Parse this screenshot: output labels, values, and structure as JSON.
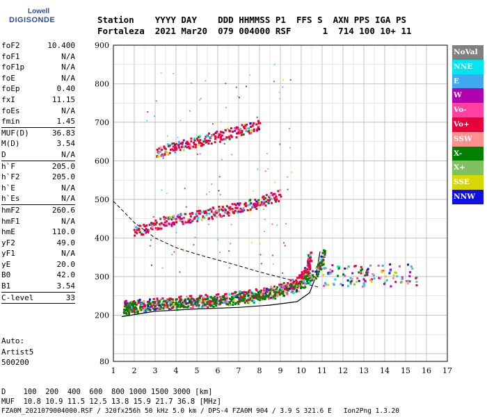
{
  "logo": {
    "company": "Lowell",
    "product": "DIGISONDE"
  },
  "header": {
    "line1": "Station    YYYY DAY    DDD HHMMSS P1  FFS S  AXN PPS IGA PS",
    "line2": "Fortaleza  2021 Mar20  079 004000 RSF      1  714 100 10+ 11"
  },
  "params": [
    {
      "name": "foF2",
      "value": "10.400"
    },
    {
      "name": "foF1",
      "value": "N/A"
    },
    {
      "name": "foF1p",
      "value": "N/A"
    },
    {
      "name": "foE",
      "value": "N/A"
    },
    {
      "name": "foEp",
      "value": "0.40"
    },
    {
      "name": "fxI",
      "value": "11.15"
    },
    {
      "name": "foEs",
      "value": "N/A"
    },
    {
      "name": "fmin",
      "value": "1.45",
      "sep": true
    },
    {
      "name": "MUF(D)",
      "value": "36.83"
    },
    {
      "name": "M(D)",
      "value": "3.54"
    },
    {
      "name": "D",
      "value": "N/A",
      "sep": true
    },
    {
      "name": "h`F",
      "value": "205.0"
    },
    {
      "name": "h`F2",
      "value": "205.0"
    },
    {
      "name": "h`E",
      "value": "N/A"
    },
    {
      "name": "h`Es",
      "value": "N/A",
      "sep": true
    },
    {
      "name": "hmF2",
      "value": "260.6"
    },
    {
      "name": "hmF1",
      "value": "N/A"
    },
    {
      "name": "hmE",
      "value": "110.0"
    },
    {
      "name": "yF2",
      "value": "49.0"
    },
    {
      "name": "yF1",
      "value": "N/A"
    },
    {
      "name": "yE",
      "value": "20.0"
    },
    {
      "name": "B0",
      "value": "42.0"
    },
    {
      "name": "B1",
      "value": "3.54",
      "sep": true
    },
    {
      "name": "C-level",
      "value": "33",
      "sep": true
    }
  ],
  "auto": [
    "Auto:",
    "Artist5",
    "500200"
  ],
  "legend": [
    {
      "label": "NoVal",
      "color": "#808080"
    },
    {
      "label": "NNE",
      "color": "#00e5ee"
    },
    {
      "label": "E",
      "color": "#40a8ee"
    },
    {
      "label": "W",
      "color": "#b000b0"
    },
    {
      "label": "Vo-",
      "color": "#ff40a0"
    },
    {
      "label": "Vo+",
      "color": "#e8003c"
    },
    {
      "label": "SSW",
      "color": "#ff9090"
    },
    {
      "label": "X-",
      "color": "#008000"
    },
    {
      "label": "X+",
      "color": "#80c060"
    },
    {
      "label": "SSE",
      "color": "#d8d800"
    },
    {
      "label": "NNW",
      "color": "#1010e0"
    }
  ],
  "footer": {
    "line1": "D    100  200  400  600  800 1000 1500 3000 [km]",
    "line2": "MUF  10.8 10.9 11.5 12.5 13.8 15.9 21.7 36.8 [MHz]",
    "line3": "FZA0M_2021079004000.RSF / 320fx256h 50 kHz 5.0 km / DPS-4 FZA0M 904 / 3.9 S 321.6 E   Ion2Png 1.3.20"
  },
  "chart_data": {
    "type": "scatter",
    "xlim": [
      1,
      17
    ],
    "ylim": [
      80,
      900
    ],
    "xticks": [
      "1",
      "2",
      "3",
      "4",
      "5",
      "6",
      "7",
      "8",
      "9",
      "10",
      "11",
      "12",
      "13",
      "14",
      "15",
      "16",
      "17"
    ],
    "yticks": [
      "200",
      "300",
      "400",
      "500",
      "600",
      "700",
      "800",
      "900"
    ],
    "y_tick_values": [
      200,
      300,
      400,
      500,
      600,
      700,
      800,
      900
    ],
    "y_bottom_label": "80",
    "grid": true,
    "legend_position": "right",
    "traces": [
      {
        "mode": "O-mode",
        "color": "#e8003c",
        "points": [
          [
            1.5,
            225
          ],
          [
            2,
            228
          ],
          [
            3,
            232
          ],
          [
            4,
            236
          ],
          [
            5,
            240
          ],
          [
            6,
            244
          ],
          [
            7,
            250
          ],
          [
            8,
            258
          ],
          [
            9,
            270
          ],
          [
            9.5,
            280
          ],
          [
            10,
            298
          ],
          [
            10.3,
            330
          ],
          [
            10.4,
            360
          ]
        ]
      },
      {
        "mode": "X-mode",
        "color": "#008000",
        "points": [
          [
            1.5,
            218
          ],
          [
            2,
            222
          ],
          [
            3,
            226
          ],
          [
            4,
            230
          ],
          [
            5,
            234
          ],
          [
            6,
            238
          ],
          [
            7,
            244
          ],
          [
            8,
            252
          ],
          [
            9,
            264
          ],
          [
            10,
            280
          ],
          [
            10.8,
            320
          ],
          [
            11.1,
            370
          ]
        ]
      },
      {
        "mode": "Multi-hop",
        "color": "#e8003c",
        "points": [
          [
            2,
            418
          ],
          [
            3,
            438
          ],
          [
            4,
            450
          ],
          [
            5,
            460
          ],
          [
            6,
            470
          ],
          [
            7,
            480
          ],
          [
            8,
            495
          ],
          [
            9,
            515
          ]
        ]
      },
      {
        "mode": "Triple-hop",
        "color": "#e8003c",
        "points": [
          [
            3,
            623
          ],
          [
            4,
            638
          ],
          [
            5,
            652
          ],
          [
            6,
            666
          ],
          [
            7,
            680
          ],
          [
            8,
            696
          ]
        ]
      }
    ],
    "profile_curve": {
      "points": [
        [
          1.4,
          196
        ],
        [
          3,
          210
        ],
        [
          5,
          216
        ],
        [
          7,
          220
        ],
        [
          8.5,
          226
        ],
        [
          9.8,
          235
        ],
        [
          10.4,
          258
        ],
        [
          10.7,
          300
        ],
        [
          10.9,
          365
        ]
      ]
    },
    "dashed_curve": {
      "points": [
        [
          1,
          495
        ],
        [
          1.5,
          468
        ],
        [
          2,
          440
        ],
        [
          3,
          400
        ],
        [
          4,
          375
        ],
        [
          5,
          358
        ],
        [
          6,
          343
        ],
        [
          7,
          328
        ],
        [
          8,
          312
        ],
        [
          9,
          298
        ],
        [
          10,
          284
        ],
        [
          10.8,
          273
        ]
      ]
    }
  }
}
